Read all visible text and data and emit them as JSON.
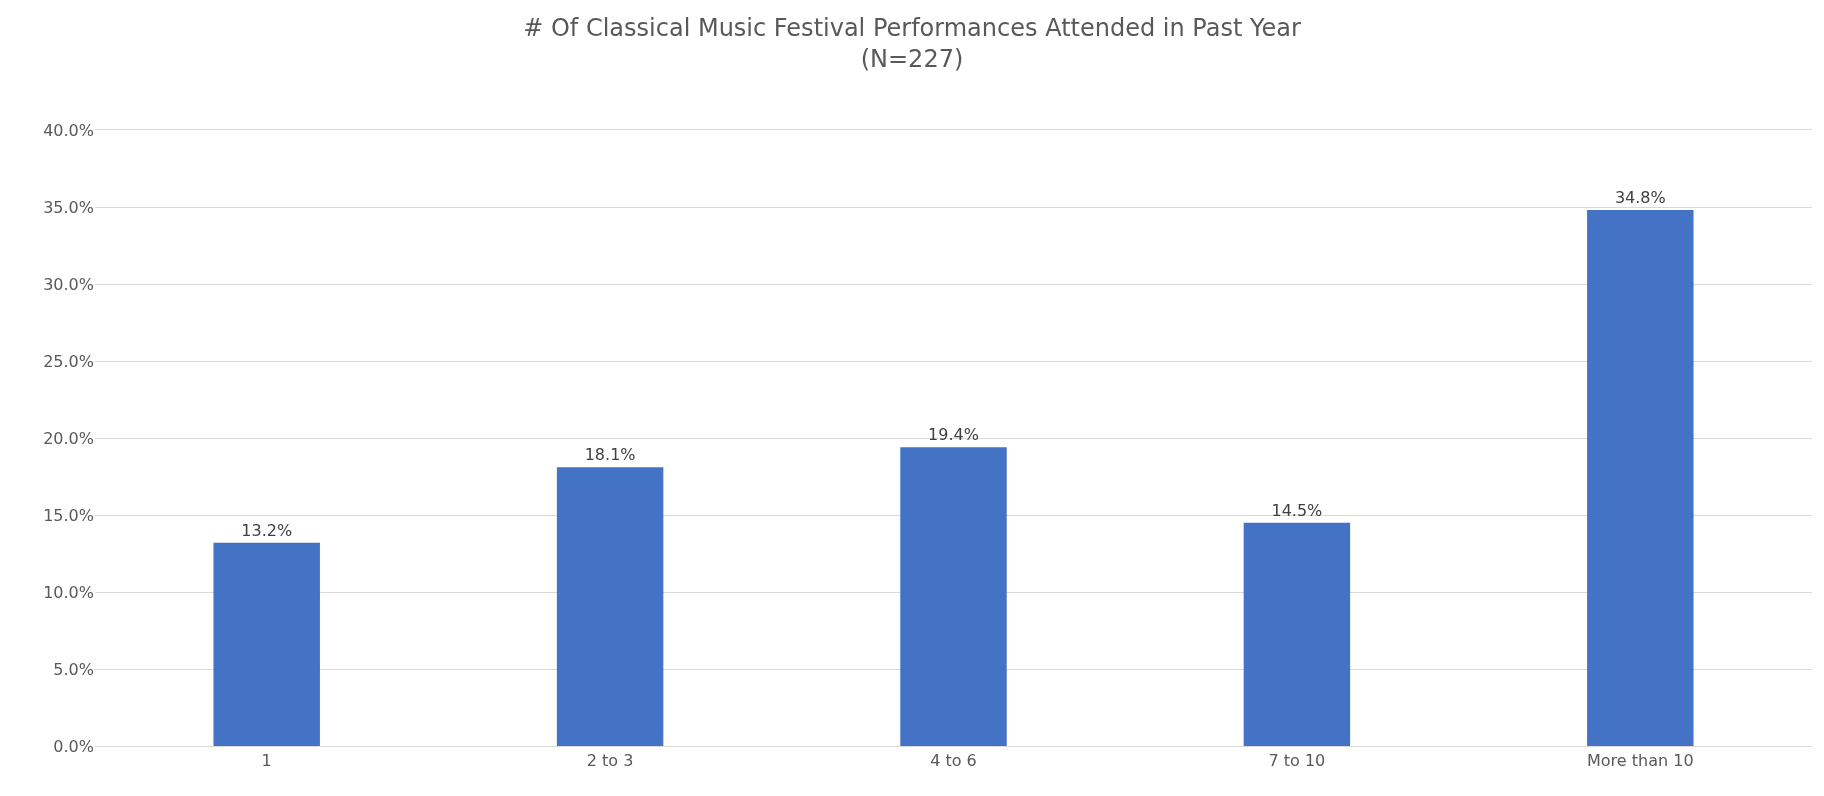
{
  "chart_data": {
    "type": "bar",
    "title": "# Of Classical Music Festival Performances Attended in Past Year",
    "subtitle": "(N=227)",
    "categories": [
      "1",
      "2 to 3",
      "4 to 6",
      "7 to 10",
      "More than 10"
    ],
    "values": [
      13.2,
      18.1,
      19.4,
      14.5,
      34.8
    ],
    "value_labels": [
      "13.2%",
      "18.1%",
      "19.4%",
      "14.5%",
      "34.8%"
    ],
    "color": "#4472c4",
    "ylim": [
      0,
      40
    ],
    "yticks": [
      {
        "value": 0,
        "label": "0.0%"
      },
      {
        "value": 5,
        "label": "5.0%"
      },
      {
        "value": 10,
        "label": "10.0%"
      },
      {
        "value": 15,
        "label": "15.0%"
      },
      {
        "value": 20,
        "label": "20.0%"
      },
      {
        "value": 25,
        "label": "25.0%"
      },
      {
        "value": 30,
        "label": "30.0%"
      },
      {
        "value": 35,
        "label": "35.0%"
      },
      {
        "value": 40,
        "label": "40.0%"
      }
    ],
    "grid": "y"
  }
}
